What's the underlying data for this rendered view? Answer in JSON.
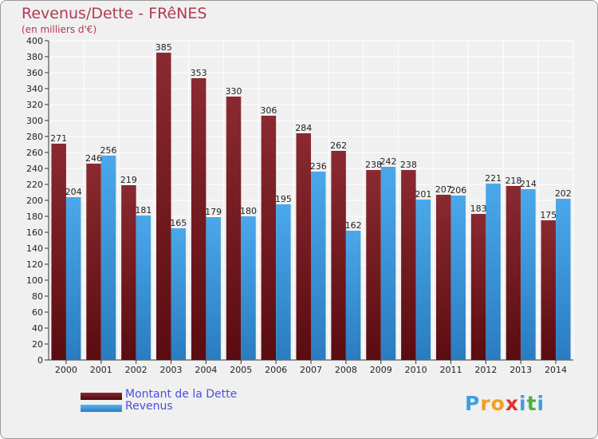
{
  "header": {
    "title": "Revenus/Dette - FRêNES",
    "subtitle": "(en milliers d'€)"
  },
  "legend": {
    "items": [
      {
        "label": "Montant de la Dette",
        "color": "#7a1e24"
      },
      {
        "label": "Revenus",
        "color": "#3f9ee0"
      }
    ]
  },
  "logo": {
    "letters": [
      "P",
      "r",
      "o",
      "x",
      "i",
      "t",
      "i"
    ],
    "colors": [
      "#3f9ee0",
      "#f0a020",
      "#f0a020",
      "#e03030",
      "#3f9ee0",
      "#50b040",
      "#3f9ee0"
    ]
  },
  "chart_data": {
    "type": "bar",
    "categories": [
      "2000",
      "2001",
      "2002",
      "2003",
      "2004",
      "2005",
      "2006",
      "2007",
      "2008",
      "2009",
      "2010",
      "2011",
      "2012",
      "2013",
      "2014"
    ],
    "series": [
      {
        "name": "Montant de la Dette",
        "values": [
          271,
          246,
          219,
          385,
          353,
          330,
          306,
          284,
          262,
          238,
          238,
          207,
          183,
          218,
          175
        ],
        "color": "#7a1e24"
      },
      {
        "name": "Revenus",
        "values": [
          204,
          256,
          181,
          165,
          179,
          180,
          195,
          236,
          162,
          242,
          201,
          206,
          221,
          214,
          202
        ],
        "color": "#3f9ee0"
      }
    ],
    "ylim": [
      0,
      400
    ],
    "ystep": 20,
    "grid": true,
    "legend_position": "bottom-left"
  }
}
